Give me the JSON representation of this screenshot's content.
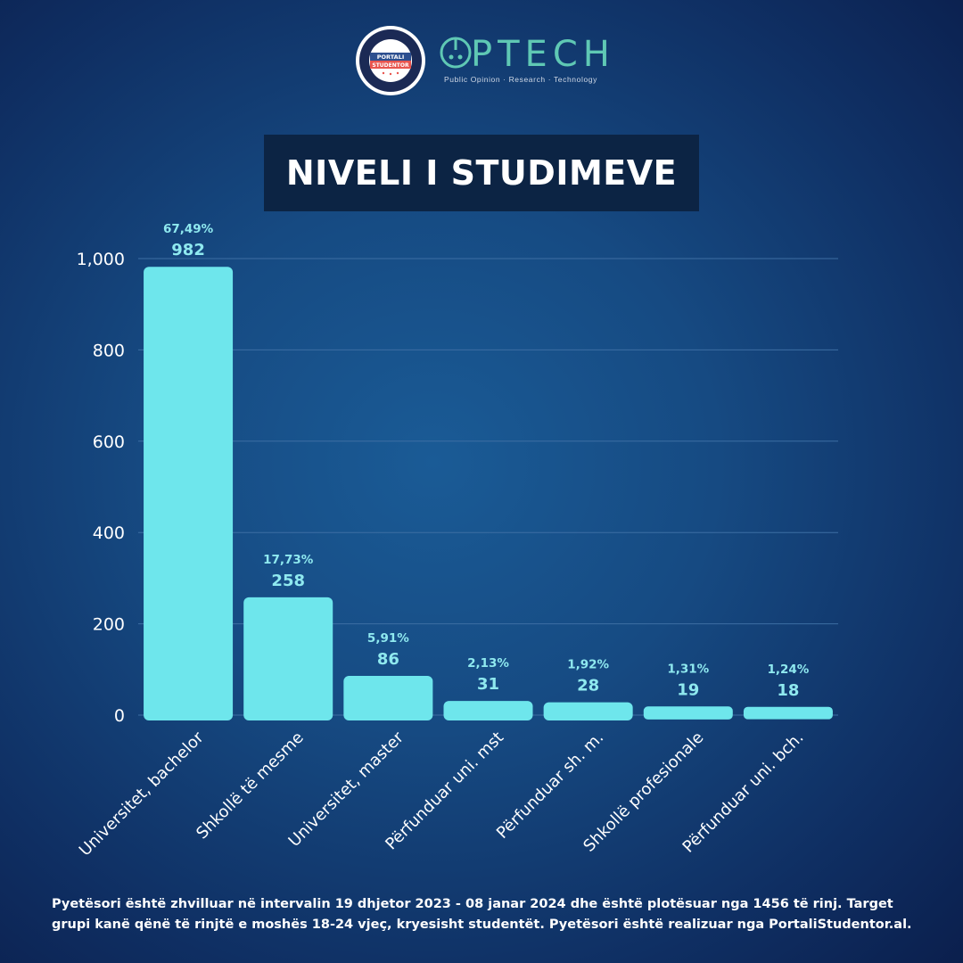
{
  "logos": {
    "portali_name": "PORTALI STUDENTOR",
    "optech_name": "PTECH",
    "optech_tagline": "Public Opinion · Research · Technology"
  },
  "colors": {
    "bar": "#6ee6ec",
    "label": "#8fe9ef",
    "grid": "#3d6ea3",
    "title_box": "#0c2444"
  },
  "chart_data": {
    "type": "bar",
    "title": "NIVELI I STUDIMEVE",
    "categories": [
      "Universitet, bachelor",
      "Shkollë të mesme",
      "Universitet, master",
      "Përfunduar uni. mst",
      "Përfunduar sh. m.",
      "Shkollë profesionale",
      "Përfunduar uni. bch."
    ],
    "values": [
      982,
      258,
      86,
      31,
      28,
      19,
      18
    ],
    "percent_labels": [
      "67,49%",
      "17,73%",
      "5,91%",
      "2,13%",
      "1,92%",
      "1,31%",
      "1,24%"
    ],
    "value_labels": [
      "982",
      "258",
      "86",
      "31",
      "28",
      "19",
      "18"
    ],
    "ylim": [
      0,
      1000
    ],
    "yticks": [
      0,
      200,
      400,
      600,
      800,
      1000
    ],
    "ytick_labels": [
      "0",
      "200",
      "400",
      "600",
      "800",
      "1,000"
    ],
    "grid": true,
    "xlabel": "",
    "ylabel": ""
  },
  "footnote": "Pyetësori është zhvilluar në intervalin 19 dhjetor 2023 - 08 janar 2024 dhe është plotësuar nga 1456 të rinj. Target grupi kanë qënë të rinjtë e moshës 18-24 vjeç, kryesisht studentët. Pyetësori është realizuar nga PortaliStudentor.al."
}
